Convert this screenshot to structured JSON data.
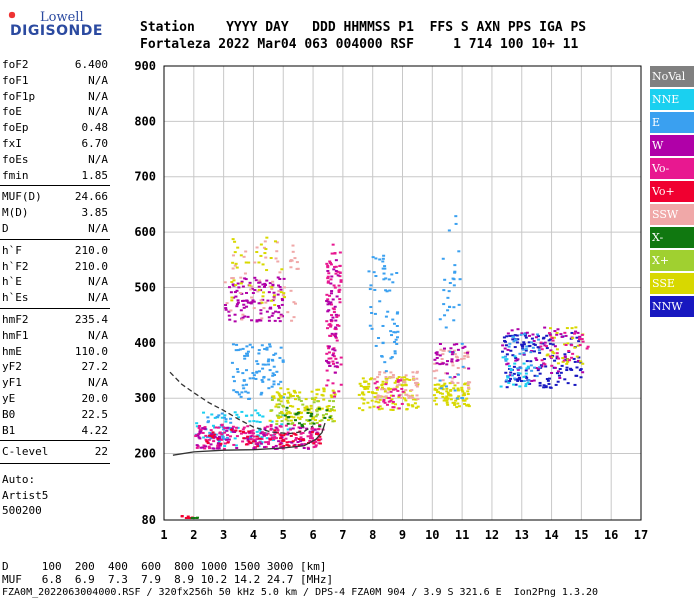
{
  "logo": {
    "line1": "Lowell",
    "line2": "DIGISONDE"
  },
  "header": {
    "line1": "Station    YYYY DAY   DDD HHMMSS P1  FFS S AXN PPS IGA PS",
    "line2": "Fortaleza 2022 Mar04 063 004000 RSF     1 714 100 10+ 11"
  },
  "params": [
    {
      "k": "foF2",
      "v": "6.400"
    },
    {
      "k": "foF1",
      "v": "N/A"
    },
    {
      "k": "foF1p",
      "v": "N/A"
    },
    {
      "k": "foE",
      "v": "N/A"
    },
    {
      "k": "foEp",
      "v": "0.48"
    },
    {
      "k": "fxI",
      "v": "6.70"
    },
    {
      "k": "foEs",
      "v": "N/A"
    },
    {
      "k": "fmin",
      "v": "1.85"
    },
    {
      "k": "MUF(D)",
      "v": "24.66"
    },
    {
      "k": "M(D)",
      "v": "3.85"
    },
    {
      "k": "D",
      "v": "N/A"
    },
    {
      "k": "h`F",
      "v": "210.0"
    },
    {
      "k": "h`F2",
      "v": "210.0"
    },
    {
      "k": "h`E",
      "v": "N/A"
    },
    {
      "k": "h`Es",
      "v": "N/A"
    },
    {
      "k": "hmF2",
      "v": "235.4"
    },
    {
      "k": "hmF1",
      "v": "N/A"
    },
    {
      "k": "hmE",
      "v": "110.0"
    },
    {
      "k": "yF2",
      "v": "27.2"
    },
    {
      "k": "yF1",
      "v": "N/A"
    },
    {
      "k": "yE",
      "v": "20.0"
    },
    {
      "k": "B0",
      "v": "22.5"
    },
    {
      "k": "B1",
      "v": "4.22"
    },
    {
      "k": "C-level",
      "v": "22"
    }
  ],
  "auto": {
    "line1": "Auto:",
    "line2": "Artist5",
    "line3": "500200"
  },
  "legend": [
    {
      "label": "NoVal",
      "color": "#808080"
    },
    {
      "label": "NNE",
      "color": "#1ad0f0"
    },
    {
      "label": "E",
      "color": "#3aa0f0"
    },
    {
      "label": "W",
      "color": "#b000a8"
    },
    {
      "label": "Vo-",
      "color": "#e81890"
    },
    {
      "label": "Vo+",
      "color": "#f00030"
    },
    {
      "label": "SSW",
      "color": "#f0a8a8"
    },
    {
      "label": "X-",
      "color": "#107810"
    },
    {
      "label": "X+",
      "color": "#a0d030"
    },
    {
      "label": "SSE",
      "color": "#d8d800"
    },
    {
      "label": "NNW",
      "color": "#1818c0"
    }
  ],
  "chart_data": {
    "type": "scatter",
    "xlabel": "",
    "ylabel": "",
    "xlim": [
      1,
      17
    ],
    "ylim": [
      80,
      900
    ],
    "x_ticks": [
      1,
      2,
      3,
      4,
      5,
      6,
      7,
      8,
      9,
      10,
      11,
      12,
      13,
      14,
      15,
      16,
      17
    ],
    "y_ticks": [
      80,
      200,
      300,
      400,
      500,
      600,
      700,
      800,
      900
    ],
    "grid": true,
    "legend_position": "right",
    "traces": [
      {
        "name": "O-trace",
        "color": "#333333",
        "style": "solid",
        "points": [
          [
            1.3,
            197
          ],
          [
            2.0,
            203
          ],
          [
            3.0,
            206
          ],
          [
            4.0,
            207
          ],
          [
            5.0,
            210
          ],
          [
            5.7,
            214
          ],
          [
            6.1,
            226
          ],
          [
            6.3,
            238
          ],
          [
            6.4,
            255
          ]
        ]
      },
      {
        "name": "X-trace",
        "color": "#333333",
        "style": "dashed",
        "points": [
          [
            1.2,
            347
          ],
          [
            1.6,
            325
          ],
          [
            2.0,
            310
          ],
          [
            2.5,
            292
          ],
          [
            3.0,
            278
          ],
          [
            3.5,
            262
          ],
          [
            4.0,
            248
          ],
          [
            4.6,
            239
          ],
          [
            5.2,
            236
          ],
          [
            5.7,
            240
          ],
          [
            6.0,
            250
          ]
        ]
      }
    ],
    "clusters": [
      {
        "color": "#1ad0f0",
        "x": [
          2.0,
          5.2
        ],
        "y": [
          215,
          280
        ],
        "count": 70
      },
      {
        "color": "#3aa0f0",
        "x": [
          3.2,
          5.0
        ],
        "y": [
          300,
          400
        ],
        "count": 90
      },
      {
        "color": "#3aa0f0",
        "x": [
          2.4,
          3.2
        ],
        "y": [
          225,
          275
        ],
        "count": 30
      },
      {
        "color": "#b000a8",
        "x": [
          3.0,
          5.0
        ],
        "y": [
          440,
          520
        ],
        "count": 110
      },
      {
        "color": "#f0a8a8",
        "x": [
          3.0,
          5.5
        ],
        "y": [
          440,
          590
        ],
        "count": 60
      },
      {
        "color": "#d8d800",
        "x": [
          3.2,
          5.2
        ],
        "y": [
          470,
          600
        ],
        "count": 40
      },
      {
        "color": "#e81890",
        "x": [
          2.0,
          6.3
        ],
        "y": [
          210,
          255
        ],
        "count": 170
      },
      {
        "color": "#b000a8",
        "x": [
          2.0,
          6.3
        ],
        "y": [
          210,
          250
        ],
        "count": 80
      },
      {
        "color": "#f00030",
        "x": [
          2.1,
          6.2
        ],
        "y": [
          215,
          245
        ],
        "count": 60
      },
      {
        "color": "#d8d800",
        "x": [
          4.5,
          6.7
        ],
        "y": [
          260,
          320
        ],
        "count": 110
      },
      {
        "color": "#a0d030",
        "x": [
          4.5,
          6.7
        ],
        "y": [
          255,
          305
        ],
        "count": 45
      },
      {
        "color": "#107810",
        "x": [
          5.0,
          6.6
        ],
        "y": [
          250,
          285
        ],
        "count": 25
      },
      {
        "color": "#e81890",
        "x": [
          6.4,
          6.9
        ],
        "y": [
          300,
          580
        ],
        "count": 90
      },
      {
        "color": "#b000a8",
        "x": [
          6.4,
          6.8
        ],
        "y": [
          340,
          560
        ],
        "count": 40
      },
      {
        "color": "#d8d800",
        "x": [
          7.5,
          9.5
        ],
        "y": [
          280,
          340
        ],
        "count": 110
      },
      {
        "color": "#f0a8a8",
        "x": [
          8.0,
          9.5
        ],
        "y": [
          300,
          350
        ],
        "count": 50
      },
      {
        "color": "#3aa0f0",
        "x": [
          7.8,
          8.8
        ],
        "y": [
          350,
          560
        ],
        "count": 60
      },
      {
        "color": "#e81890",
        "x": [
          8.0,
          9.0
        ],
        "y": [
          280,
          340
        ],
        "count": 30
      },
      {
        "color": "#d8d800",
        "x": [
          10.0,
          11.2
        ],
        "y": [
          285,
          330
        ],
        "count": 80
      },
      {
        "color": "#f0a8a8",
        "x": [
          10.0,
          11.2
        ],
        "y": [
          320,
          390
        ],
        "count": 40
      },
      {
        "color": "#3aa0f0",
        "x": [
          10.2,
          11.0
        ],
        "y": [
          300,
          640
        ],
        "count": 40
      },
      {
        "color": "#b000a8",
        "x": [
          10.0,
          11.2
        ],
        "y": [
          340,
          400
        ],
        "count": 30
      },
      {
        "color": "#1818c0",
        "x": [
          12.3,
          15.0
        ],
        "y": [
          320,
          420
        ],
        "count": 140
      },
      {
        "color": "#b000a8",
        "x": [
          12.3,
          15.0
        ],
        "y": [
          330,
          430
        ],
        "count": 55
      },
      {
        "color": "#3aa0f0",
        "x": [
          12.3,
          13.6
        ],
        "y": [
          330,
          420
        ],
        "count": 40
      },
      {
        "color": "#d8d800",
        "x": [
          13.8,
          15.0
        ],
        "y": [
          360,
          430
        ],
        "count": 30
      },
      {
        "color": "#e81890",
        "x": [
          13.5,
          15.2
        ],
        "y": [
          360,
          420
        ],
        "count": 30
      },
      {
        "color": "#1ad0f0",
        "x": [
          12.2,
          13.2
        ],
        "y": [
          320,
          380
        ],
        "count": 20
      },
      {
        "color": "#f00030",
        "x": [
          1.5,
          2.0
        ],
        "y": [
          80,
          90
        ],
        "count": 8
      },
      {
        "color": "#107810",
        "x": [
          1.8,
          2.1
        ],
        "y": [
          82,
          86
        ],
        "count": 4
      }
    ]
  },
  "footer": {
    "d_line": "D     100  200  400  600  800 1000 1500 3000 [km]",
    "muf_line": "MUF   6.8  6.9  7.3  7.9  8.9 10.2 14.2 24.7 [MHz]",
    "file_line": "FZA0M_2022063004000.RSF / 320fx256h 50 kHz 5.0 km / DPS-4 FZA0M 904 / 3.9 S 321.6 E  Ion2Png 1.3.20"
  }
}
